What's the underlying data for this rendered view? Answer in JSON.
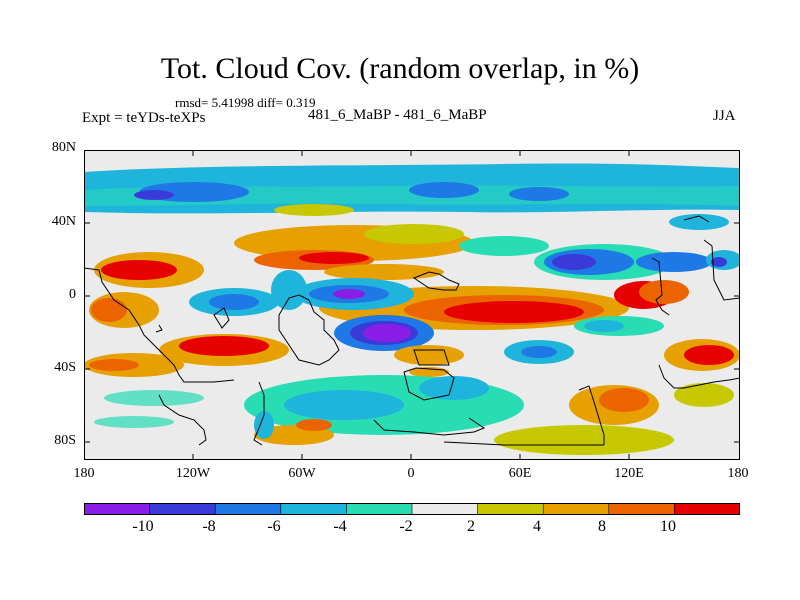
{
  "title": "Tot. Cloud Cov. (random overlap, in %)",
  "stats": "rmsd= 5.41998 diff= 0.319",
  "expt_label": "Expt = teYDs-teXPs",
  "center_label": "481_6_MaBP - 481_6_MaBP",
  "season": "JJA",
  "y_ticks": [
    "80N",
    "40N",
    "0",
    "40S",
    "80S"
  ],
  "x_ticks": [
    "180",
    "120W",
    "60W",
    "0",
    "60E",
    "120E",
    "180"
  ],
  "colorbar": {
    "colors": [
      "#8a1ee6",
      "#3a3ad9",
      "#1e78e6",
      "#1eb4dc",
      "#28dcb4",
      "#ebebeb",
      "#c8c800",
      "#e6a000",
      "#eb6400",
      "#e60000"
    ],
    "labels": [
      "-10",
      "-8",
      "-6",
      "-4",
      "-2",
      "2",
      "4",
      "8",
      "10"
    ]
  }
}
